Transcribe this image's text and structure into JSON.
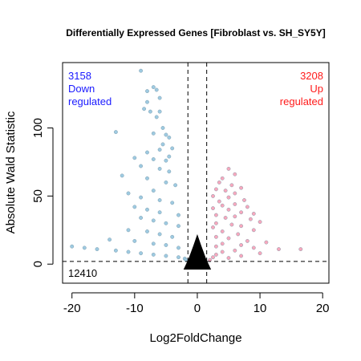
{
  "chart_data": {
    "type": "scatter",
    "title": "Differentially Expressed Genes [Fibroblast vs. SH_SY5Y]",
    "xlabel": "Log2FoldChange",
    "ylabel": "Absolute Wald Statistic",
    "xlim": [
      -21.5,
      21
    ],
    "ylim": [
      -14,
      148
    ],
    "x_ticks": [
      -20,
      -10,
      0,
      10,
      20
    ],
    "y_ticks": [
      0,
      50,
      100
    ],
    "thresholds": {
      "fold_change_lines": [
        -1.5,
        1.5
      ],
      "statistic_line": 2
    },
    "grid": false,
    "colors": {
      "down": "#9ecae1",
      "up": "#f7a8bd",
      "not_significant": "#000000"
    },
    "annotations": {
      "down": {
        "count": "3158",
        "line1": "Down",
        "line2": "regulated",
        "color": "#1a1aff"
      },
      "up": {
        "count": "3208",
        "line1": "Up",
        "line2": "regulated",
        "color": "#ff1a1a"
      },
      "not_significant": {
        "count": "12410",
        "color": "#000000"
      }
    },
    "series": [
      {
        "name": "Down regulated",
        "color": "#9ecae1",
        "points": [
          [
            -9,
            142
          ],
          [
            -7,
            130
          ],
          [
            -6.5,
            128
          ],
          [
            -8,
            127
          ],
          [
            -6,
            122
          ],
          [
            -8,
            119
          ],
          [
            -8.5,
            114
          ],
          [
            -7.5,
            112
          ],
          [
            -6,
            112
          ],
          [
            -6.5,
            108
          ],
          [
            -13,
            97
          ],
          [
            -5.5,
            100
          ],
          [
            -7,
            96
          ],
          [
            -5,
            95
          ],
          [
            -4.5,
            93
          ],
          [
            -5.5,
            88
          ],
          [
            -4,
            85
          ],
          [
            -6,
            84
          ],
          [
            -8,
            82
          ],
          [
            -4.5,
            79
          ],
          [
            -5,
            76
          ],
          [
            -10,
            78
          ],
          [
            -7,
            77
          ],
          [
            -9,
            72
          ],
          [
            -6,
            70
          ],
          [
            -4.5,
            68
          ],
          [
            -12,
            65
          ],
          [
            -8,
            63
          ],
          [
            -5,
            60
          ],
          [
            -3.5,
            58
          ],
          [
            -11,
            52
          ],
          [
            -7,
            54
          ],
          [
            -9,
            49
          ],
          [
            -6,
            47
          ],
          [
            -4,
            45
          ],
          [
            -10,
            42
          ],
          [
            -8,
            40
          ],
          [
            -6,
            38
          ],
          [
            -3,
            36
          ],
          [
            -9,
            34
          ],
          [
            -7,
            32
          ],
          [
            -5,
            30
          ],
          [
            -3,
            28
          ],
          [
            -11,
            25
          ],
          [
            -8,
            24
          ],
          [
            -6,
            22
          ],
          [
            -4,
            20
          ],
          [
            -14,
            18
          ],
          [
            -10,
            17
          ],
          [
            -7,
            15
          ],
          [
            -5,
            14
          ],
          [
            -3,
            12
          ],
          [
            -20,
            13
          ],
          [
            -18,
            12
          ],
          [
            -16,
            11
          ],
          [
            -13,
            10
          ],
          [
            -11,
            9
          ],
          [
            -9,
            8
          ],
          [
            -7,
            7
          ],
          [
            -5,
            6
          ],
          [
            -3,
            5
          ],
          [
            -2,
            4
          ],
          [
            -1.8,
            3
          ]
        ]
      },
      {
        "name": "Up regulated",
        "color": "#f7a8bd",
        "points": [
          [
            5,
            70
          ],
          [
            6,
            66
          ],
          [
            4,
            63
          ],
          [
            3.5,
            60
          ],
          [
            5.5,
            58
          ],
          [
            7,
            56
          ],
          [
            3,
            55
          ],
          [
            4.5,
            54
          ],
          [
            6,
            52
          ],
          [
            2.5,
            50
          ],
          [
            5,
            49
          ],
          [
            7.5,
            47
          ],
          [
            3.5,
            46
          ],
          [
            6,
            44
          ],
          [
            4,
            43
          ],
          [
            8,
            42
          ],
          [
            2.5,
            41
          ],
          [
            5,
            40
          ],
          [
            7,
            38
          ],
          [
            9,
            37
          ],
          [
            3,
            36
          ],
          [
            6,
            35
          ],
          [
            4.5,
            34
          ],
          [
            8.5,
            33
          ],
          [
            10,
            31
          ],
          [
            3,
            30
          ],
          [
            5.5,
            29
          ],
          [
            7,
            28
          ],
          [
            2.5,
            27
          ],
          [
            9,
            25
          ],
          [
            4,
            24
          ],
          [
            6.5,
            22
          ],
          [
            3,
            20
          ],
          [
            5,
            19
          ],
          [
            8,
            17
          ],
          [
            11,
            16
          ],
          [
            4,
            15
          ],
          [
            7,
            14
          ],
          [
            3,
            13
          ],
          [
            9,
            12
          ],
          [
            13,
            11
          ],
          [
            16.5,
            11
          ],
          [
            6,
            10
          ],
          [
            4,
            9
          ],
          [
            10,
            8
          ],
          [
            3,
            7
          ],
          [
            7,
            6
          ],
          [
            2.5,
            5
          ],
          [
            5,
            4.5
          ],
          [
            2,
            3
          ]
        ]
      }
    ]
  }
}
